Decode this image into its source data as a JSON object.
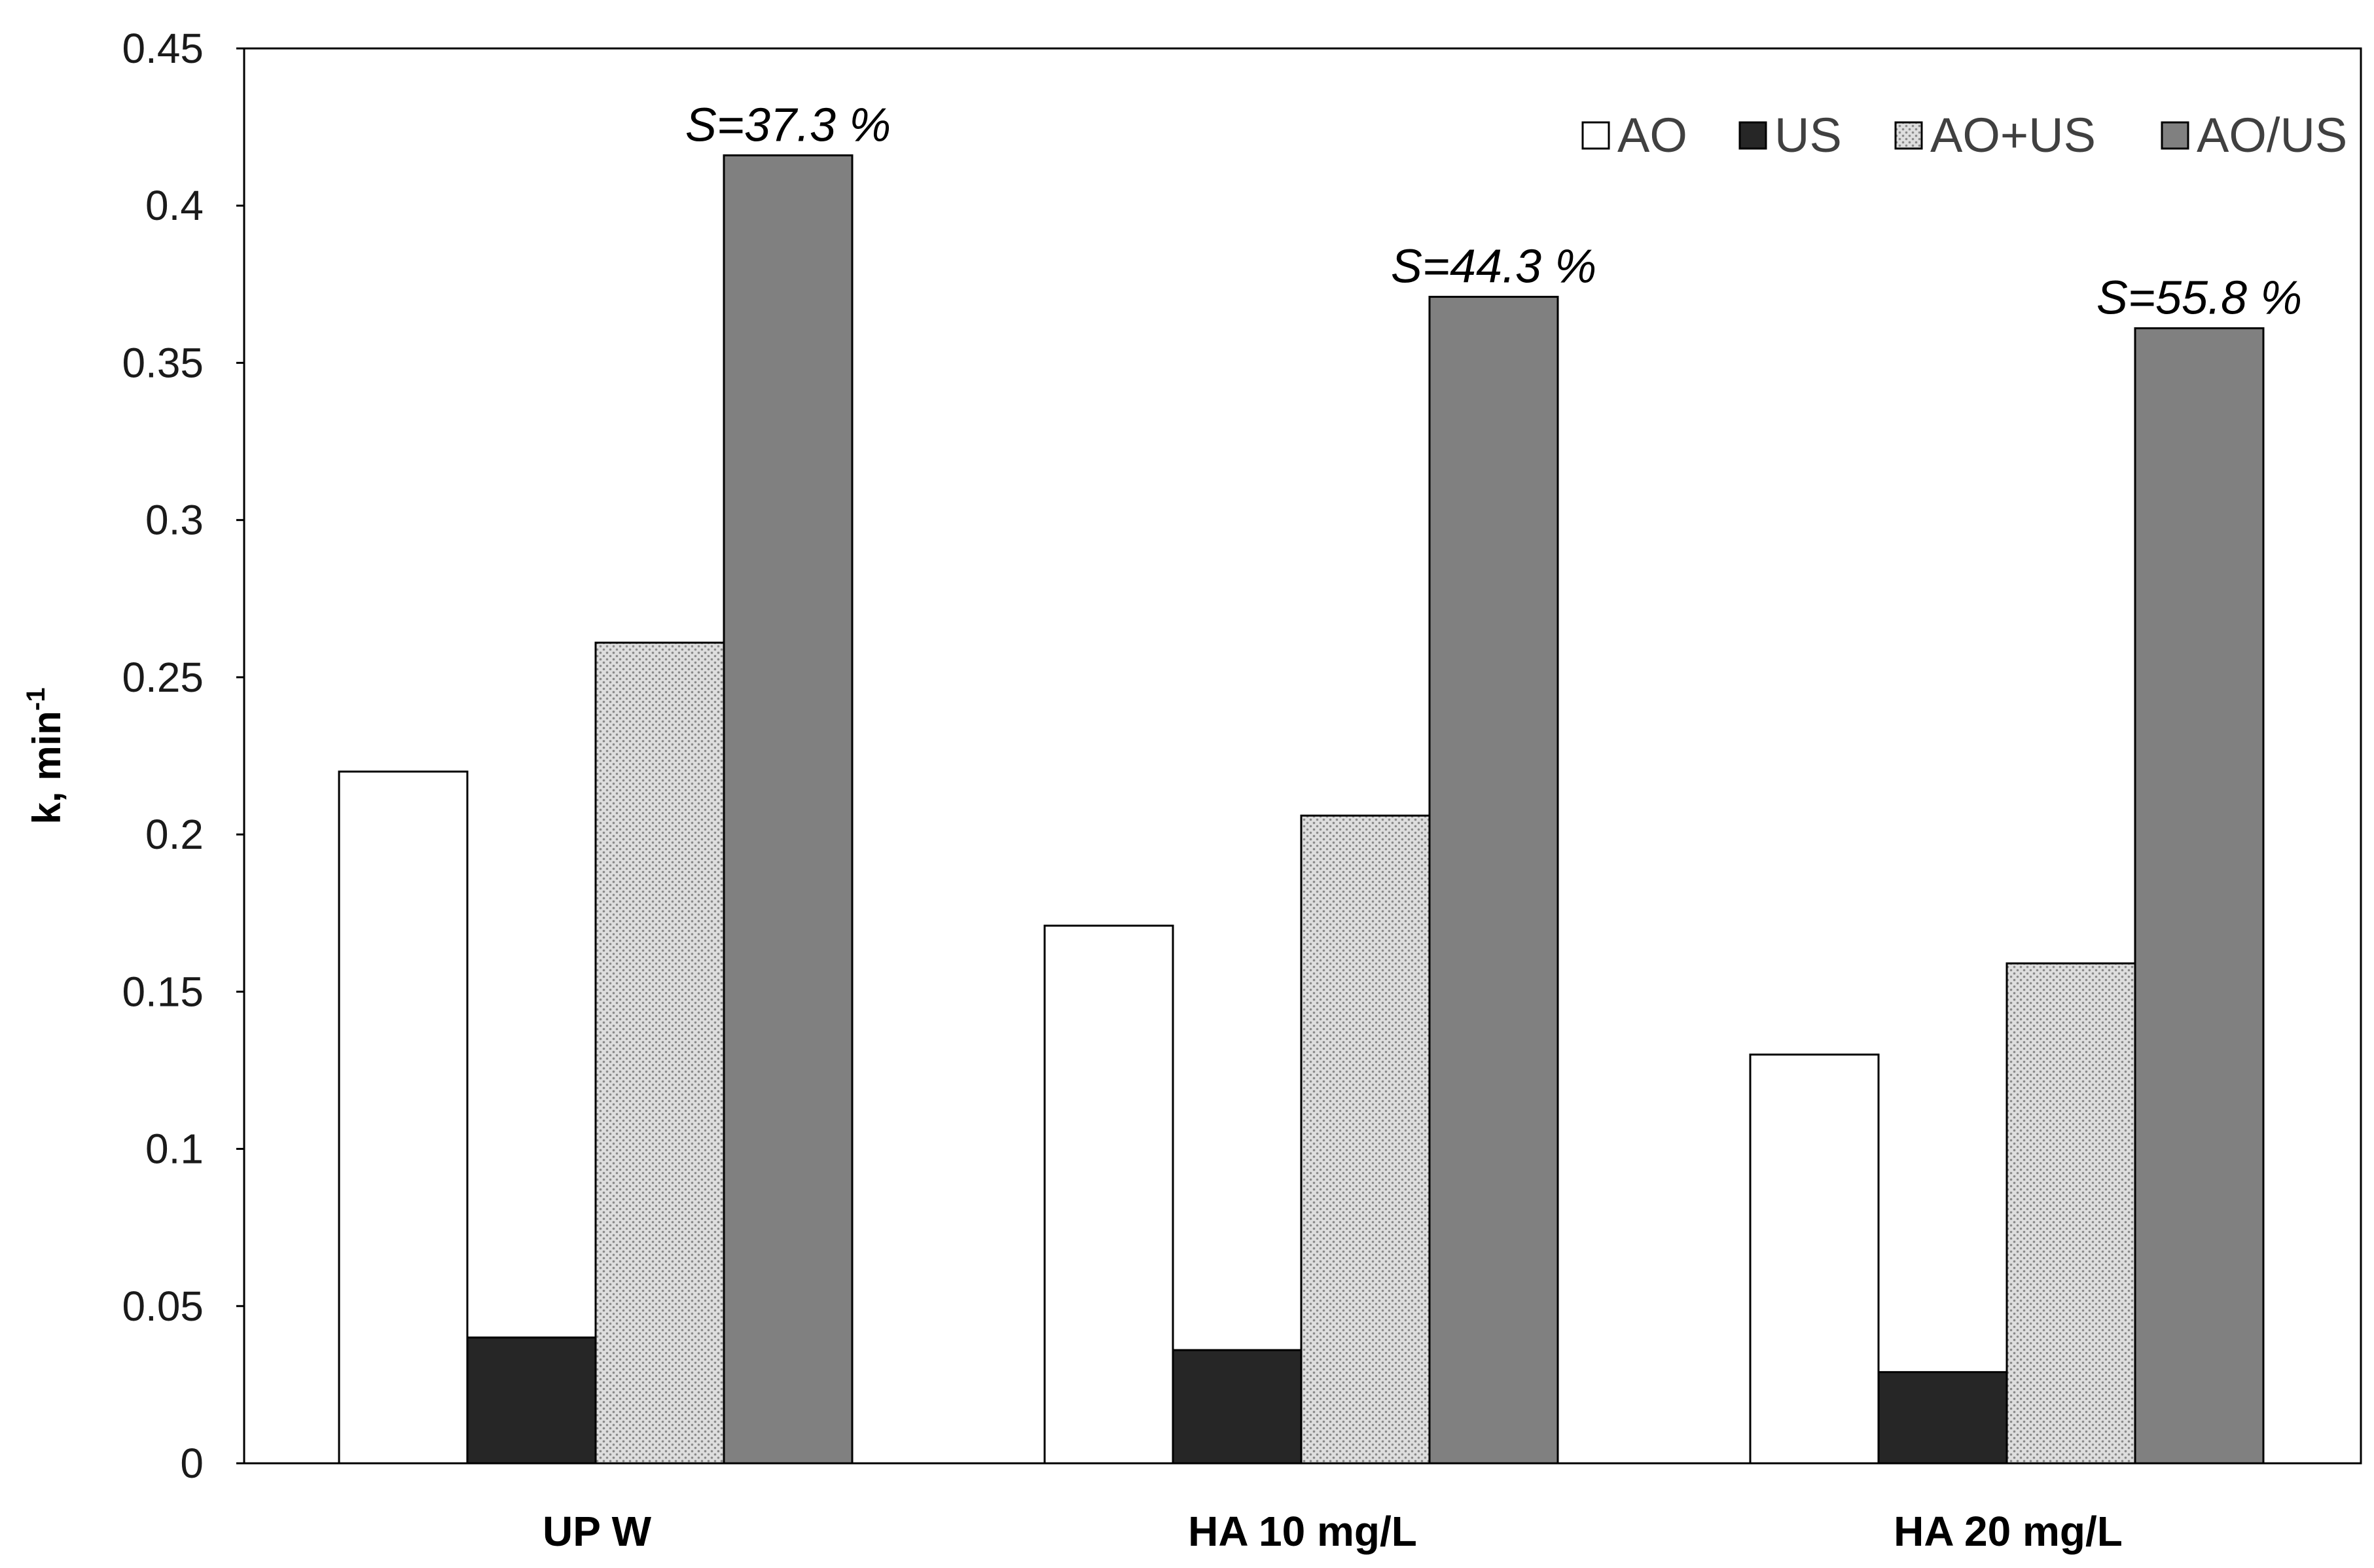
{
  "chart_data": {
    "type": "bar",
    "title": "",
    "xlabel": "",
    "ylabel": "k, min",
    "ylabel_superscript": "-1",
    "ylim": [
      0,
      0.45
    ],
    "yticks": [
      0,
      0.05,
      0.1,
      0.15,
      0.2,
      0.25,
      0.3,
      0.35,
      0.4,
      0.45
    ],
    "ytick_labels": [
      "0",
      "0.05",
      "0.1",
      "0.15",
      "0.2",
      "0.25",
      "0.3",
      "0.35",
      "0.4",
      "0.45"
    ],
    "grid": false,
    "legend_position": "top-right",
    "categories": [
      "UP W",
      "HA 10 mg/L",
      "HA 20 mg/L"
    ],
    "series": [
      {
        "name": "AO",
        "values": [
          0.22,
          0.171,
          0.13
        ],
        "color": "#ffffff",
        "pattern": "none"
      },
      {
        "name": "US",
        "values": [
          0.04,
          0.036,
          0.029
        ],
        "color": "#262626",
        "pattern": "none"
      },
      {
        "name": "AO+US",
        "values": [
          0.261,
          0.206,
          0.159
        ],
        "color": "#d6d6d6",
        "pattern": "dotted"
      },
      {
        "name": "AO/US",
        "values": [
          0.416,
          0.371,
          0.361
        ],
        "color": "#808080",
        "pattern": "none"
      }
    ],
    "annotations": [
      {
        "category": "UP W",
        "series": "AO/US",
        "text": "S=37.3 %"
      },
      {
        "category": "HA 10 mg/L",
        "series": "AO/US",
        "text": "S=44.3 %"
      },
      {
        "category": "HA 20 mg/L",
        "series": "AO/US",
        "text": "S=55.8 %"
      }
    ]
  }
}
